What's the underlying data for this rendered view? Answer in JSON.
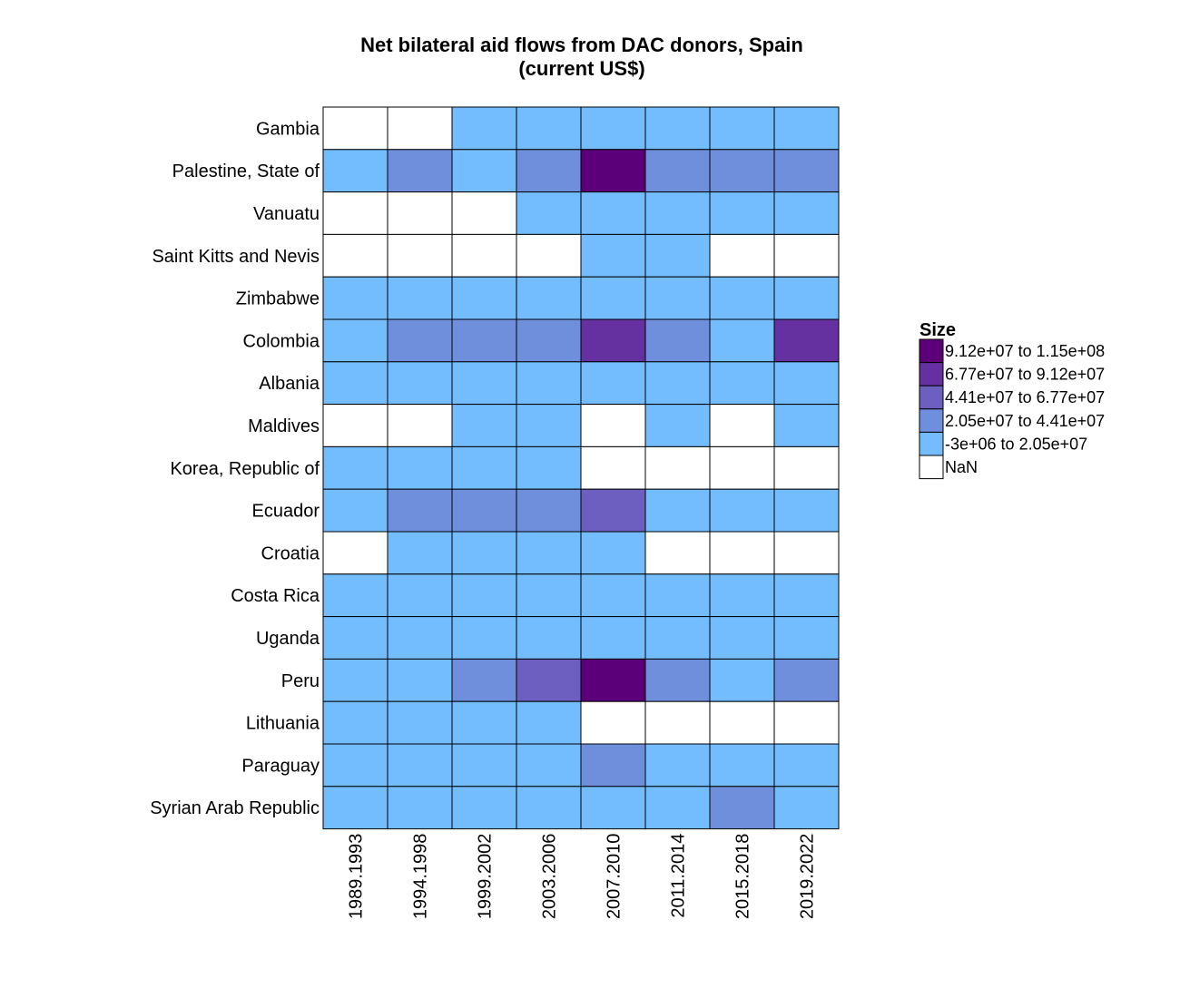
{
  "chart_data": {
    "type": "heatmap",
    "title": "Net bilateral aid flows from DAC donors, Spain",
    "subtitle": "(current US$)",
    "x": [
      "1989.1993",
      "1994.1998",
      "1999.2002",
      "2003.2006",
      "2007.2010",
      "2011.2014",
      "2015.2018",
      "2019.2022"
    ],
    "y": [
      "Gambia",
      "Palestine, State of",
      "Vanuatu",
      "Saint Kitts and Nevis",
      "Zimbabwe",
      "Colombia",
      "Albania",
      "Maldives",
      "Korea, Republic of",
      "Ecuador",
      "Croatia",
      "Costa Rica",
      "Uganda",
      "Peru",
      "Lithuania",
      "Paraguay",
      "Syrian Arab Republic"
    ],
    "bins_note": "cell values are legend bin indices: 0 = NaN, 1 = lowest bin ... 5 = highest bin",
    "cells": [
      [
        0,
        0,
        1,
        1,
        1,
        1,
        1,
        1
      ],
      [
        1,
        2,
        1,
        2,
        5,
        2,
        2,
        2
      ],
      [
        0,
        0,
        0,
        1,
        1,
        1,
        1,
        1
      ],
      [
        0,
        0,
        0,
        0,
        1,
        1,
        0,
        0
      ],
      [
        1,
        1,
        1,
        1,
        1,
        1,
        1,
        1
      ],
      [
        1,
        2,
        2,
        2,
        4,
        2,
        1,
        4
      ],
      [
        1,
        1,
        1,
        1,
        1,
        1,
        1,
        1
      ],
      [
        0,
        0,
        1,
        1,
        0,
        1,
        0,
        1
      ],
      [
        1,
        1,
        1,
        1,
        0,
        0,
        0,
        0
      ],
      [
        1,
        2,
        2,
        2,
        3,
        1,
        1,
        1
      ],
      [
        0,
        1,
        1,
        1,
        1,
        0,
        0,
        0
      ],
      [
        1,
        1,
        1,
        1,
        1,
        1,
        1,
        1
      ],
      [
        1,
        1,
        1,
        1,
        1,
        1,
        1,
        1
      ],
      [
        1,
        1,
        2,
        3,
        5,
        2,
        1,
        2
      ],
      [
        1,
        1,
        1,
        1,
        0,
        0,
        0,
        0
      ],
      [
        1,
        1,
        1,
        1,
        2,
        1,
        1,
        1
      ],
      [
        1,
        1,
        1,
        1,
        1,
        1,
        2,
        1
      ]
    ],
    "legend": {
      "title": "Size",
      "placement": "right",
      "entries": [
        {
          "label": "9.12e+07 to 1.15e+08",
          "color": "#5b0079"
        },
        {
          "label": "6.77e+07 to 9.12e+07",
          "color": "#6531a0"
        },
        {
          "label": "4.41e+07 to 6.77e+07",
          "color": "#6c5fbf"
        },
        {
          "label": "2.05e+07 to 4.41e+07",
          "color": "#6f8fdc"
        },
        {
          "label": "-3e+06 to 2.05e+07",
          "color": "#73bdff"
        },
        {
          "label": "NaN",
          "color": "#ffffff"
        }
      ]
    },
    "bin_colors": [
      "#ffffff",
      "#73bdff",
      "#6f8fdc",
      "#6c5fbf",
      "#6531a0",
      "#5b0079"
    ],
    "grid": false
  }
}
